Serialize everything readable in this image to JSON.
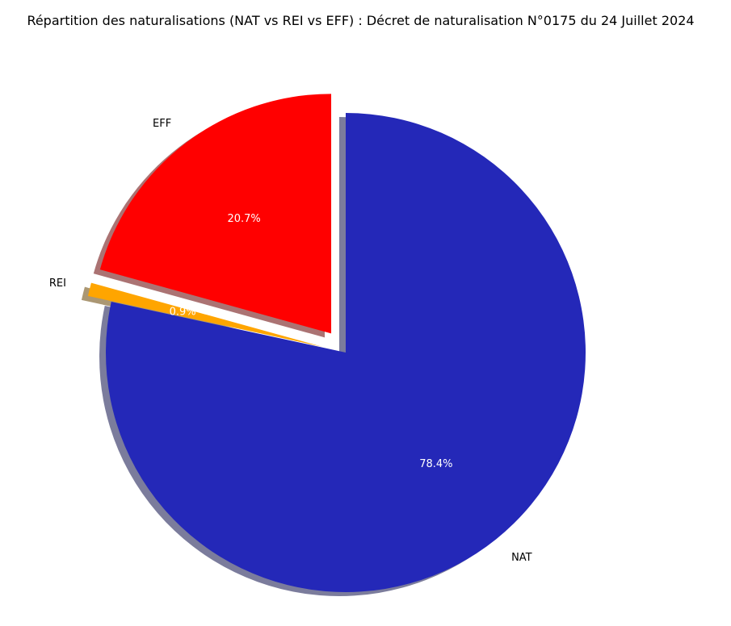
{
  "chart_data": {
    "type": "pie",
    "title": "Répartition des naturalisations (NAT vs REI vs EFF) : Décret de naturalisation N°0175 du 24 Juillet 2024",
    "slices": [
      {
        "label": "NAT",
        "percent": 78.4,
        "percent_label": "78.4%",
        "color": "#2428b8",
        "exploded": false
      },
      {
        "label": "REI",
        "percent": 0.9,
        "percent_label": "0.9%",
        "color": "#ffa500",
        "exploded": true
      },
      {
        "label": "EFF",
        "percent": 20.7,
        "percent_label": "20.7%",
        "color": "#ff0000",
        "exploded": true
      }
    ],
    "start_angle": "top, clockwise from NAT",
    "shadow": true,
    "legend": "none"
  }
}
